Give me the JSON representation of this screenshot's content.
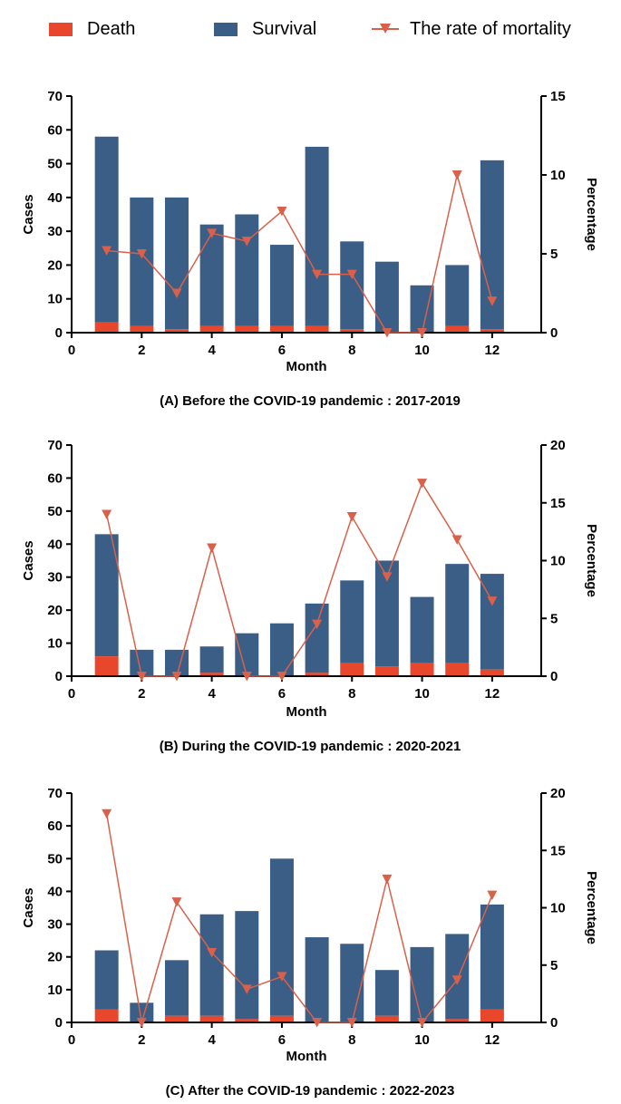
{
  "legend": {
    "death": "Death",
    "survival": "Survival",
    "mortality": "The rate of mortality"
  },
  "colors": {
    "death": "#e8472c",
    "survival": "#3b5e86",
    "mortality": "#d9604a"
  },
  "chart_data": [
    {
      "type": "bar",
      "title": "(A) Before the COVID-19 pandemic : 2017-2019",
      "xlabel": "Month",
      "ylabel": "Cases",
      "y2label": "Percentage",
      "xlim": [
        0,
        13.4
      ],
      "xticks": [
        0,
        2,
        4,
        6,
        8,
        10,
        12
      ],
      "ylim": [
        0,
        70
      ],
      "yticks": [
        0,
        10,
        20,
        30,
        40,
        50,
        60,
        70
      ],
      "y2lim": [
        0,
        15
      ],
      "y2ticks": [
        0,
        5,
        10,
        15
      ],
      "x": [
        1,
        2,
        3,
        4,
        5,
        6,
        7,
        8,
        9,
        10,
        11,
        12
      ],
      "series": [
        {
          "name": "Death",
          "kind": "bar",
          "values": [
            3,
            2,
            1,
            2,
            2,
            2,
            2,
            1,
            0,
            0,
            2,
            1
          ]
        },
        {
          "name": "Survival",
          "kind": "bar",
          "values": [
            55,
            38,
            39,
            30,
            33,
            24,
            53,
            26,
            21,
            14,
            18,
            50
          ]
        },
        {
          "name": "The rate of mortality",
          "kind": "line",
          "axis": "right",
          "values": [
            5.2,
            5.0,
            2.5,
            6.3,
            5.8,
            7.7,
            3.7,
            3.7,
            0,
            0,
            10.0,
            2.0
          ]
        }
      ]
    },
    {
      "type": "bar",
      "title": "(B) During the COVID-19 pandemic : 2020-2021",
      "xlabel": "Month",
      "ylabel": "Cases",
      "y2label": "Percentage",
      "xlim": [
        0,
        13.4
      ],
      "xticks": [
        0,
        2,
        4,
        6,
        8,
        10,
        12
      ],
      "ylim": [
        0,
        70
      ],
      "yticks": [
        0,
        10,
        20,
        30,
        40,
        50,
        60,
        70
      ],
      "y2lim": [
        0,
        20
      ],
      "y2ticks": [
        0,
        5,
        10,
        15,
        20
      ],
      "x": [
        1,
        2,
        3,
        4,
        5,
        6,
        7,
        8,
        9,
        10,
        11,
        12
      ],
      "series": [
        {
          "name": "Death",
          "kind": "bar",
          "values": [
            6,
            0,
            0,
            1,
            0,
            0,
            1,
            4,
            3,
            4,
            4,
            2
          ]
        },
        {
          "name": "Survival",
          "kind": "bar",
          "values": [
            37,
            8,
            8,
            8,
            13,
            16,
            21,
            25,
            32,
            20,
            30,
            29
          ]
        },
        {
          "name": "The rate of mortality",
          "kind": "line",
          "axis": "right",
          "values": [
            14.0,
            0,
            0,
            11.1,
            0,
            0,
            4.5,
            13.8,
            8.6,
            16.7,
            11.8,
            6.5
          ]
        }
      ]
    },
    {
      "type": "bar",
      "title": "(C) After the COVID-19 pandemic : 2022-2023",
      "xlabel": "Month",
      "ylabel": "Cases",
      "y2label": "Percentage",
      "xlim": [
        0,
        13.4
      ],
      "xticks": [
        0,
        2,
        4,
        6,
        8,
        10,
        12
      ],
      "ylim": [
        0,
        70
      ],
      "yticks": [
        0,
        10,
        20,
        30,
        40,
        50,
        60,
        70
      ],
      "y2lim": [
        0,
        20
      ],
      "y2ticks": [
        0,
        5,
        10,
        15,
        20
      ],
      "x": [
        1,
        2,
        3,
        4,
        5,
        6,
        7,
        8,
        9,
        10,
        11,
        12
      ],
      "series": [
        {
          "name": "Death",
          "kind": "bar",
          "values": [
            4,
            0,
            2,
            2,
            1,
            2,
            0,
            0,
            2,
            0,
            1,
            4
          ]
        },
        {
          "name": "Survival",
          "kind": "bar",
          "values": [
            18,
            6,
            17,
            31,
            33,
            48,
            26,
            24,
            14,
            23,
            26,
            32
          ]
        },
        {
          "name": "The rate of mortality",
          "kind": "line",
          "axis": "right",
          "values": [
            18.2,
            0,
            10.5,
            6.1,
            2.9,
            4.0,
            0,
            0,
            12.5,
            0,
            3.7,
            11.1
          ]
        }
      ]
    }
  ]
}
